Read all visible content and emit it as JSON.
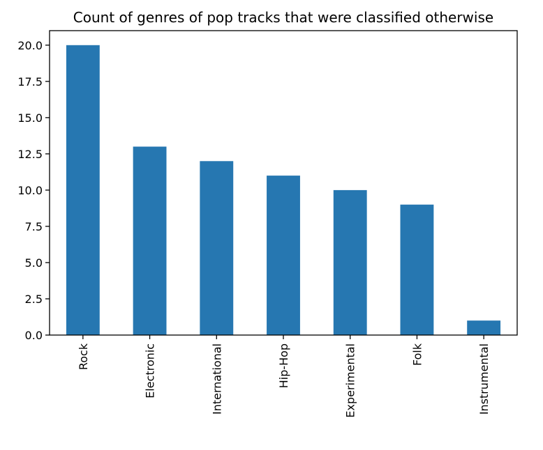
{
  "chart_data": {
    "type": "bar",
    "title": "Count of genres of pop tracks that were classified otherwise",
    "xlabel": "",
    "ylabel": "",
    "categories": [
      "Rock",
      "Electronic",
      "International",
      "Hip-Hop",
      "Experimental",
      "Folk",
      "Instrumental"
    ],
    "values": [
      20,
      13,
      12,
      11,
      10,
      9,
      1
    ],
    "ylim": [
      0,
      21
    ],
    "yticks": [
      "0.0",
      "2.5",
      "5.0",
      "7.5",
      "10.0",
      "12.5",
      "15.0",
      "17.5",
      "20.0"
    ],
    "bar_color": "#2677b1",
    "grid": false,
    "legend": "none"
  }
}
